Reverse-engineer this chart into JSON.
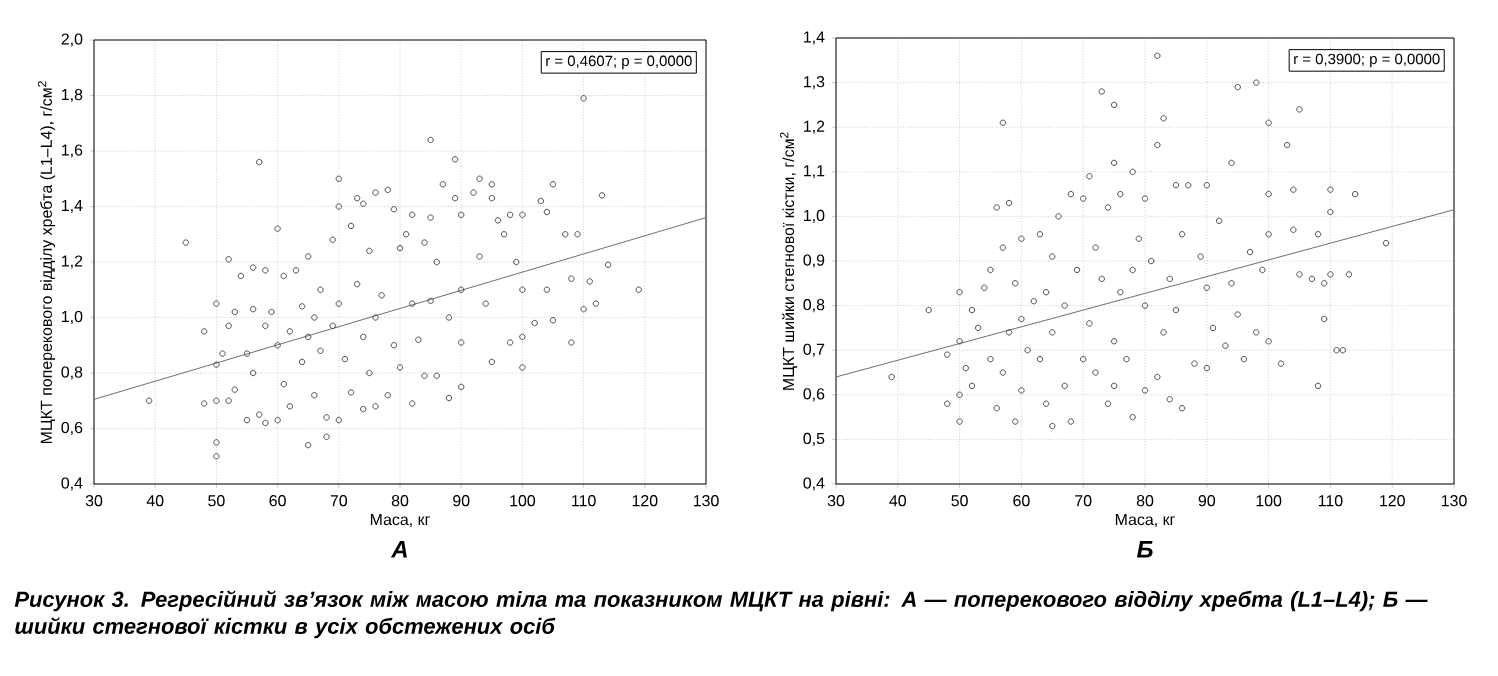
{
  "chart_data": [
    {
      "type": "scatter",
      "title": "А",
      "xlabel": "Маса, кг",
      "ylabel": "МЦКТ поперекового відділу хребта (L1–L4), г/см$^{2}$",
      "annotations": [
        "r = 0,4607; p = 0,0000",
        "Рисунок 3. Регресійний зв’язок між масою тіла та показником МЦКТ на рівні: А — поперекового відділу хребта (L1–L4); Б — шийки стегнової кістки в усіх обстежених осіб"
      ],
      "xlim": [
        30,
        130
      ],
      "ylim": [
        0.4,
        2.0
      ],
      "xticks": [
        30,
        40,
        50,
        60,
        70,
        80,
        90,
        100,
        110,
        120,
        130
      ],
      "yticks": [
        {
          "value": 0.4,
          "label": "0,4"
        },
        {
          "value": 0.6,
          "label": "0,6"
        },
        {
          "value": 0.8,
          "label": "0,8"
        },
        {
          "value": 1.0,
          "label": "1,0"
        },
        {
          "value": 1.2,
          "label": "1,2"
        },
        {
          "value": 1.4,
          "label": "1,4"
        },
        {
          "value": 1.6,
          "label": "1,6"
        },
        {
          "value": 1.8,
          "label": "1,8"
        },
        {
          "value": 2.0,
          "label": "2,0"
        }
      ],
      "grid": true,
      "series": [
        {
          "marker": "circle",
          "color": "#3a3a3a",
          "x": [
            39,
            45,
            48,
            48,
            50,
            50,
            50,
            50,
            50,
            51,
            52,
            52,
            52,
            53,
            53,
            54,
            55,
            55,
            56,
            56,
            56,
            57,
            57,
            58,
            58,
            58,
            59,
            60,
            60,
            60,
            61,
            61,
            62,
            62,
            63,
            64,
            64,
            65,
            65,
            65,
            66,
            66,
            67,
            67,
            68,
            68,
            69,
            69,
            70,
            70,
            70,
            70,
            71,
            72,
            72,
            73,
            73,
            74,
            74,
            74,
            75,
            75,
            76,
            76,
            76,
            77,
            78,
            78,
            79,
            79,
            80,
            80,
            81,
            82,
            82,
            82,
            83,
            84,
            84,
            85,
            85,
            85,
            86,
            86,
            87,
            88,
            88,
            89,
            89,
            90,
            90,
            90,
            90,
            92,
            93,
            93,
            94,
            95,
            95,
            95,
            96,
            97,
            98,
            98,
            99,
            100,
            100,
            100,
            100,
            102,
            103,
            104,
            104,
            105,
            105,
            107,
            108,
            108,
            109,
            110,
            110,
            111,
            112,
            113,
            114,
            119
          ],
          "values": [
            0.7,
            1.27,
            0.95,
            0.69,
            1.05,
            0.55,
            0.5,
            0.7,
            0.83,
            0.87,
            1.21,
            0.97,
            0.7,
            1.02,
            0.74,
            1.15,
            0.63,
            0.87,
            1.18,
            1.03,
            0.8,
            1.56,
            0.65,
            1.17,
            0.62,
            0.97,
            1.02,
            1.32,
            0.63,
            0.9,
            1.15,
            0.76,
            0.68,
            0.95,
            1.17,
            1.04,
            0.84,
            1.22,
            0.54,
            0.93,
            1.0,
            0.72,
            0.88,
            1.1,
            0.64,
            0.57,
            1.28,
            0.97,
            1.5,
            1.4,
            0.63,
            1.05,
            0.85,
            1.33,
            0.73,
            1.43,
            1.12,
            1.41,
            0.93,
            0.67,
            1.24,
            0.8,
            1.45,
            1.0,
            0.68,
            1.08,
            1.46,
            0.72,
            1.39,
            0.9,
            1.25,
            0.82,
            1.3,
            1.37,
            1.05,
            0.69,
            0.92,
            1.27,
            0.79,
            1.64,
            1.36,
            1.06,
            1.2,
            0.79,
            1.48,
            0.71,
            1.0,
            1.57,
            1.43,
            1.37,
            1.1,
            0.75,
            0.91,
            1.45,
            1.5,
            1.22,
            1.05,
            1.48,
            1.43,
            0.84,
            1.35,
            1.3,
            0.91,
            1.37,
            1.2,
            1.37,
            0.82,
            1.1,
            0.93,
            0.98,
            1.42,
            1.38,
            1.1,
            1.48,
            0.99,
            1.3,
            0.91,
            1.14,
            1.3,
            1.79,
            1.03,
            1.13,
            1.05,
            1.44,
            1.19,
            1.1
          ]
        },
        {
          "type": "line",
          "marker": "none",
          "color": "#6e6e6e",
          "x": [
            30,
            130
          ],
          "values": [
            0.705,
            1.36
          ]
        }
      ]
    },
    {
      "type": "scatter",
      "title": "Б",
      "xlabel": "Маса, кг",
      "ylabel": "МЦКТ шийки стегнової кістки, г/см$^{2}$",
      "annotations": [
        "r = 0,3900; p = 0,0000"
      ],
      "xlim": [
        30,
        130
      ],
      "ylim": [
        0.4,
        1.4
      ],
      "xticks": [
        30,
        40,
        50,
        60,
        70,
        80,
        90,
        100,
        110,
        120,
        130
      ],
      "yticks": [
        {
          "value": 0.4,
          "label": "0,4"
        },
        {
          "value": 0.5,
          "label": "0,5"
        },
        {
          "value": 0.6,
          "label": "0,6"
        },
        {
          "value": 0.7,
          "label": "0,7"
        },
        {
          "value": 0.8,
          "label": "0,8"
        },
        {
          "value": 0.9,
          "label": "0,9"
        },
        {
          "value": 1.0,
          "label": "1,0"
        },
        {
          "value": 1.1,
          "label": "1,1"
        },
        {
          "value": 1.2,
          "label": "1,2"
        },
        {
          "value": 1.3,
          "label": "1,3"
        },
        {
          "value": 1.4,
          "label": "1,4"
        }
      ],
      "grid": true,
      "series": [
        {
          "marker": "circle",
          "color": "#3a3a3a",
          "x": [
            39,
            45,
            48,
            48,
            50,
            50,
            50,
            50,
            51,
            52,
            52,
            53,
            54,
            55,
            55,
            56,
            56,
            57,
            57,
            57,
            58,
            58,
            59,
            59,
            60,
            60,
            60,
            61,
            62,
            63,
            63,
            64,
            64,
            65,
            65,
            65,
            66,
            67,
            67,
            68,
            68,
            69,
            70,
            70,
            71,
            71,
            72,
            72,
            73,
            73,
            74,
            74,
            75,
            75,
            75,
            75,
            76,
            76,
            77,
            78,
            78,
            78,
            79,
            80,
            80,
            80,
            81,
            82,
            82,
            82,
            83,
            83,
            84,
            84,
            85,
            85,
            86,
            86,
            87,
            88,
            89,
            90,
            90,
            90,
            91,
            92,
            93,
            94,
            94,
            95,
            95,
            96,
            97,
            98,
            98,
            99,
            100,
            100,
            100,
            100,
            102,
            103,
            104,
            104,
            105,
            105,
            107,
            108,
            108,
            109,
            109,
            110,
            110,
            110,
            111,
            112,
            113,
            114,
            119
          ],
          "values": [
            0.64,
            0.79,
            0.58,
            0.69,
            0.83,
            0.54,
            0.6,
            0.72,
            0.66,
            0.62,
            0.79,
            0.75,
            0.84,
            0.88,
            0.68,
            1.02,
            0.57,
            1.21,
            0.93,
            0.65,
            1.03,
            0.74,
            0.54,
            0.85,
            0.95,
            0.61,
            0.77,
            0.7,
            0.81,
            0.96,
            0.68,
            0.58,
            0.83,
            0.53,
            0.91,
            0.74,
            1.0,
            0.62,
            0.8,
            1.05,
            0.54,
            0.88,
            1.04,
            0.68,
            1.09,
            0.76,
            0.93,
            0.65,
            1.28,
            0.86,
            0.58,
            1.02,
            1.25,
            1.12,
            0.72,
            0.62,
            1.05,
            0.83,
            0.68,
            1.1,
            0.55,
            0.88,
            0.95,
            1.04,
            0.61,
            0.8,
            0.9,
            1.36,
            1.16,
            0.64,
            1.22,
            0.74,
            0.59,
            0.86,
            1.07,
            0.79,
            0.57,
            0.96,
            1.07,
            0.67,
            0.91,
            1.07,
            0.66,
            0.84,
            0.75,
            0.99,
            0.71,
            1.12,
            0.85,
            1.29,
            0.78,
            0.68,
            0.92,
            1.3,
            0.74,
            0.88,
            1.21,
            0.72,
            0.96,
            1.05,
            0.67,
            1.16,
            1.06,
            0.97,
            1.24,
            0.87,
            0.86,
            0.62,
            0.96,
            0.77,
            0.85,
            1.06,
            0.87,
            1.01,
            0.7,
            0.7,
            0.87,
            1.05,
            0.94
          ]
        },
        {
          "type": "line",
          "marker": "none",
          "color": "#6e6e6e",
          "x": [
            30,
            130
          ],
          "values": [
            0.64,
            1.015
          ]
        }
      ]
    }
  ]
}
